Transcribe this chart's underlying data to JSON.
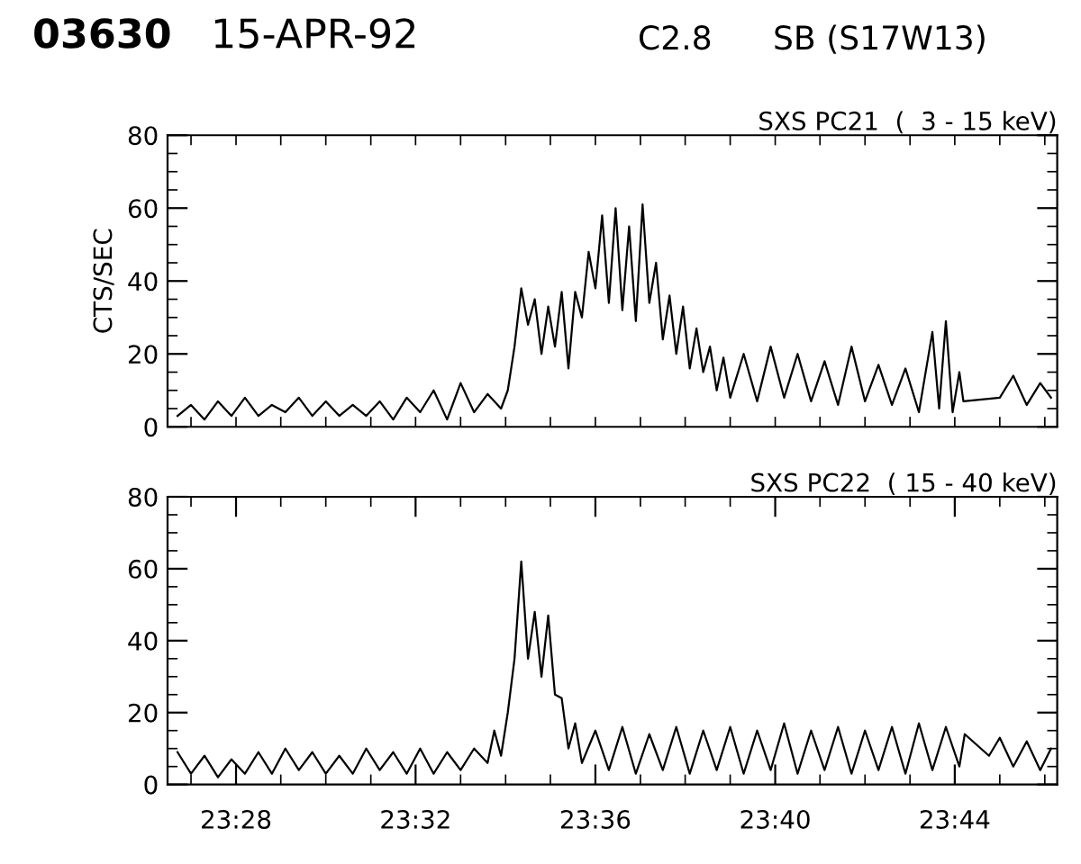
{
  "chart_data": [
    {
      "type": "line",
      "title": "SXS PC21  (  3 - 15 keV)",
      "ylabel": "CTS/SEC",
      "annotations": [
        "03630",
        "15-APR-92",
        "C2.8",
        "SB (S17W13)"
      ],
      "tick_labels": "y",
      "grid": false,
      "legend": false,
      "marker": "none",
      "line_style": "solid",
      "xlim": [
        23.4413,
        23.7713
      ],
      "ylim": [
        0,
        80
      ],
      "xticks": [
        {
          "value": 23.45,
          "label": null
        },
        {
          "value": 23.4667,
          "label": null
        },
        {
          "value": 23.4833,
          "label": null
        },
        {
          "value": 23.5,
          "label": null
        },
        {
          "value": 23.5167,
          "label": null
        },
        {
          "value": 23.5333,
          "label": null
        },
        {
          "value": 23.55,
          "label": null
        },
        {
          "value": 23.5667,
          "label": null
        },
        {
          "value": 23.5833,
          "label": null
        },
        {
          "value": 23.6,
          "label": null
        },
        {
          "value": 23.6167,
          "label": null
        },
        {
          "value": 23.6333,
          "label": null
        },
        {
          "value": 23.65,
          "label": null
        },
        {
          "value": 23.6667,
          "label": null
        },
        {
          "value": 23.6833,
          "label": null
        },
        {
          "value": 23.7,
          "label": null
        },
        {
          "value": 23.7167,
          "label": null
        },
        {
          "value": 23.7333,
          "label": null
        },
        {
          "value": 23.75,
          "label": null
        },
        {
          "value": 23.7667,
          "label": null
        }
      ],
      "yticks": [
        0,
        {
          "value": 5,
          "label": null
        },
        {
          "value": 10,
          "label": null
        },
        {
          "value": 15,
          "label": null
        },
        20,
        {
          "value": 25,
          "label": null
        },
        {
          "value": 30,
          "label": null
        },
        {
          "value": 35,
          "label": null
        },
        40,
        {
          "value": 45,
          "label": null
        },
        {
          "value": 50,
          "label": null
        },
        {
          "value": 55,
          "label": null
        },
        60,
        {
          "value": 65,
          "label": null
        },
        {
          "value": 70,
          "label": null
        },
        {
          "value": 75,
          "label": null
        },
        80
      ],
      "series": [
        {
          "color": "#000000",
          "x": [
            23.445,
            23.45,
            23.455,
            23.46,
            23.465,
            23.47,
            23.475,
            23.48,
            23.485,
            23.49,
            23.495,
            23.5,
            23.505,
            23.51,
            23.515,
            23.52,
            23.525,
            23.53,
            23.535,
            23.54,
            23.545,
            23.55,
            23.555,
            23.56,
            23.565,
            23.5675,
            23.57,
            23.5725,
            23.575,
            23.5775,
            23.58,
            23.5825,
            23.585,
            23.5875,
            23.59,
            23.5925,
            23.595,
            23.5975,
            23.6,
            23.6025,
            23.605,
            23.6075,
            23.61,
            23.6125,
            23.615,
            23.6175,
            23.62,
            23.6225,
            23.625,
            23.6275,
            23.63,
            23.6325,
            23.635,
            23.6375,
            23.64,
            23.6425,
            23.645,
            23.6475,
            23.65,
            23.655,
            23.66,
            23.665,
            23.67,
            23.675,
            23.68,
            23.685,
            23.69,
            23.695,
            23.7,
            23.705,
            23.71,
            23.715,
            23.72,
            23.725,
            23.7275,
            23.73,
            23.7325,
            23.735,
            23.7365,
            23.75,
            23.755,
            23.76,
            23.765,
            23.769
          ],
          "values": [
            3,
            6,
            2,
            7,
            3,
            8,
            3,
            6,
            4,
            8,
            3,
            7,
            3,
            6,
            3,
            7,
            2,
            8,
            4,
            10,
            2,
            12,
            4,
            9,
            5,
            10,
            22,
            38,
            28,
            35,
            20,
            33,
            22,
            37,
            16,
            37,
            30,
            48,
            38,
            58,
            34,
            60,
            32,
            55,
            29,
            61,
            34,
            45,
            24,
            36,
            20,
            33,
            16,
            27,
            15,
            22,
            10,
            19,
            8,
            20,
            7,
            22,
            8,
            20,
            7,
            18,
            6,
            22,
            7,
            17,
            6,
            16,
            4,
            26,
            5,
            29,
            4,
            15,
            7,
            8,
            14,
            6,
            12,
            8
          ]
        }
      ]
    },
    {
      "type": "line",
      "title": "SXS PC22  ( 15 - 40 keV)",
      "grid": false,
      "legend": false,
      "marker": "none",
      "line_style": "solid",
      "xlim": [
        23.4413,
        23.7713
      ],
      "ylim": [
        0,
        80
      ],
      "xticks": [
        {
          "value": 23.45,
          "label": null
        },
        {
          "value": 23.4667,
          "label": "23:28"
        },
        {
          "value": 23.4833,
          "label": null
        },
        {
          "value": 23.5,
          "label": null
        },
        {
          "value": 23.5167,
          "label": null
        },
        {
          "value": 23.5333,
          "label": "23:32"
        },
        {
          "value": 23.55,
          "label": null
        },
        {
          "value": 23.5667,
          "label": null
        },
        {
          "value": 23.5833,
          "label": null
        },
        {
          "value": 23.6,
          "label": "23:36"
        },
        {
          "value": 23.6167,
          "label": null
        },
        {
          "value": 23.6333,
          "label": null
        },
        {
          "value": 23.65,
          "label": null
        },
        {
          "value": 23.6667,
          "label": "23:40"
        },
        {
          "value": 23.6833,
          "label": null
        },
        {
          "value": 23.7,
          "label": null
        },
        {
          "value": 23.7167,
          "label": null
        },
        {
          "value": 23.7333,
          "label": "23:44"
        },
        {
          "value": 23.75,
          "label": null
        },
        {
          "value": 23.7667,
          "label": null
        }
      ],
      "yticks": [
        0,
        {
          "value": 5,
          "label": null
        },
        {
          "value": 10,
          "label": null
        },
        {
          "value": 15,
          "label": null
        },
        20,
        {
          "value": 25,
          "label": null
        },
        {
          "value": 30,
          "label": null
        },
        {
          "value": 35,
          "label": null
        },
        40,
        {
          "value": 45,
          "label": null
        },
        {
          "value": 50,
          "label": null
        },
        {
          "value": 55,
          "label": null
        },
        60,
        {
          "value": 65,
          "label": null
        },
        {
          "value": 70,
          "label": null
        },
        {
          "value": 75,
          "label": null
        },
        80
      ],
      "series": [
        {
          "color": "#000000",
          "x": [
            23.445,
            23.45,
            23.455,
            23.46,
            23.465,
            23.47,
            23.475,
            23.48,
            23.485,
            23.49,
            23.495,
            23.5,
            23.505,
            23.51,
            23.515,
            23.52,
            23.525,
            23.53,
            23.535,
            23.54,
            23.545,
            23.55,
            23.555,
            23.56,
            23.5625,
            23.565,
            23.5675,
            23.57,
            23.5725,
            23.575,
            23.5775,
            23.58,
            23.5825,
            23.585,
            23.5875,
            23.59,
            23.5925,
            23.595,
            23.6,
            23.605,
            23.61,
            23.615,
            23.62,
            23.625,
            23.63,
            23.635,
            23.64,
            23.645,
            23.65,
            23.655,
            23.66,
            23.665,
            23.67,
            23.675,
            23.68,
            23.685,
            23.69,
            23.695,
            23.7,
            23.705,
            23.71,
            23.715,
            23.72,
            23.725,
            23.73,
            23.735,
            23.737,
            23.746,
            23.75,
            23.755,
            23.76,
            23.765,
            23.769
          ],
          "values": [
            9,
            3,
            8,
            2,
            7,
            3,
            9,
            3,
            10,
            4,
            9,
            3,
            8,
            3,
            10,
            4,
            9,
            3,
            10,
            3,
            9,
            4,
            10,
            6,
            15,
            8,
            20,
            35,
            62,
            35,
            48,
            30,
            47,
            25,
            24,
            10,
            17,
            6,
            15,
            4,
            16,
            3,
            14,
            4,
            16,
            3,
            15,
            4,
            16,
            3,
            15,
            4,
            17,
            3,
            15,
            4,
            16,
            3,
            15,
            4,
            16,
            3,
            17,
            4,
            16,
            5,
            14,
            8,
            13,
            5,
            12,
            4,
            10
          ]
        }
      ]
    }
  ]
}
